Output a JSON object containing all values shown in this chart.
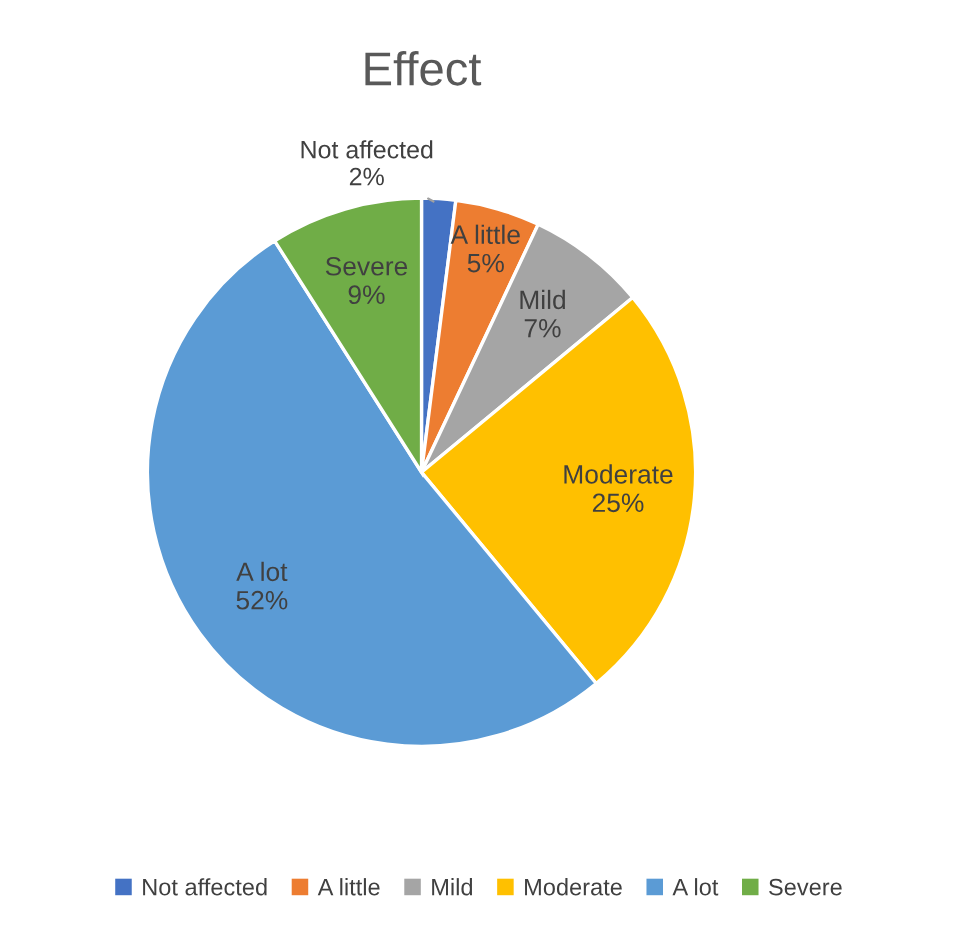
{
  "chart_data": {
    "type": "pie",
    "title": "Effect",
    "categories": [
      "Not affected",
      "A little",
      "Mild",
      "Moderate",
      "A lot",
      "Severe"
    ],
    "values": [
      2,
      5,
      7,
      25,
      52,
      9
    ],
    "colors": [
      "#4472c4",
      "#ed7d31",
      "#a5a5a5",
      "#ffc000",
      "#5b9bd5",
      "#70ad47"
    ],
    "value_labels": [
      "2%",
      "5%",
      "7%",
      "25%",
      "52%",
      "9%"
    ],
    "legend": "bottom"
  }
}
